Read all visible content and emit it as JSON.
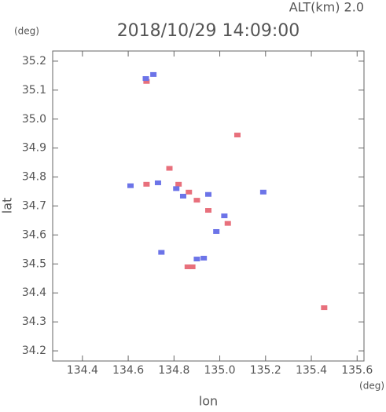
{
  "chart_data": {
    "type": "scatter",
    "altitude_label": "ALT(km) 2.0",
    "y_unit": "(deg)",
    "x_unit": "(deg)",
    "title": "2018/10/29 14:09:00",
    "x_label": "lon",
    "y_label": "lat",
    "xlim": [
      134.27,
      135.63
    ],
    "ylim": [
      34.165,
      35.235
    ],
    "xticks": [
      134.4,
      134.6,
      134.8,
      {
        "value": 135,
        "label": "135.0"
      },
      135.2,
      135.4,
      135.6
    ],
    "yticks": [
      34.2,
      34.3,
      34.4,
      34.5,
      34.6,
      34.7,
      34.8,
      34.9,
      {
        "value": 35,
        "label": "35.0"
      },
      35.1,
      35.2
    ],
    "series": [
      {
        "color": "#e8707c",
        "x": [
          134.68,
          135.077,
          134.78,
          134.865,
          134.9,
          134.95,
          135.035,
          134.68,
          134.88,
          134.86,
          135.456,
          134.82
        ],
        "values": [
          35.13,
          34.945,
          34.83,
          34.748,
          34.72,
          34.685,
          34.64,
          34.775,
          34.49,
          34.49,
          34.349,
          34.775
        ]
      },
      {
        "color": "#6c74e8",
        "x": [
          134.677,
          134.71,
          134.81,
          134.95,
          135.02,
          134.985,
          134.61,
          134.73,
          134.745,
          134.93,
          134.9,
          135.19,
          134.84
        ],
        "values": [
          35.14,
          35.154,
          34.76,
          34.74,
          34.666,
          34.612,
          34.77,
          34.78,
          34.54,
          34.52,
          34.517,
          34.748,
          34.734
        ]
      }
    ]
  }
}
